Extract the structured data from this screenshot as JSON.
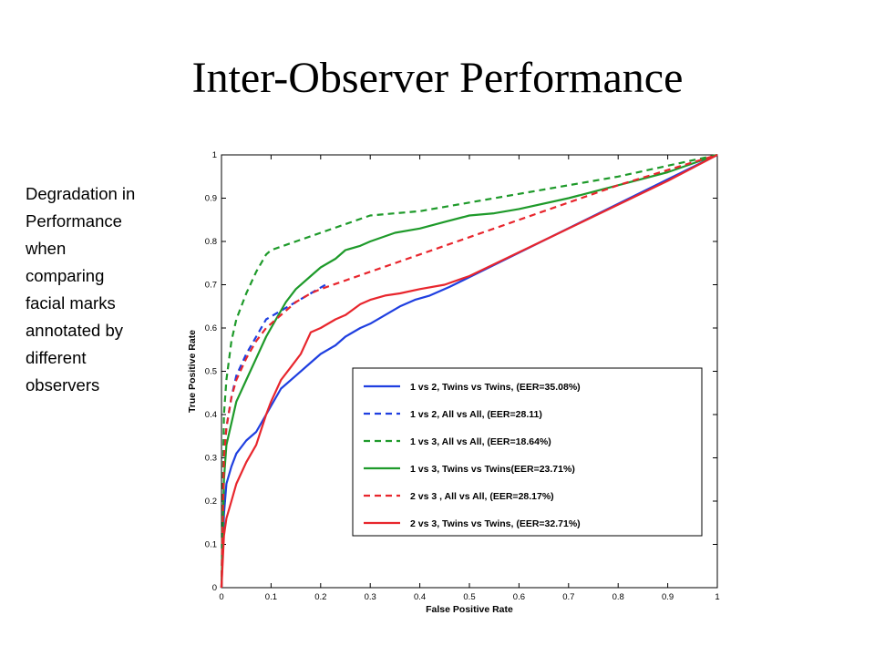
{
  "slide": {
    "title": "Inter-Observer Performance",
    "note_lines": [
      "Degradation in",
      "Performance",
      "when",
      "comparing",
      "facial marks",
      "annotated by",
      "different",
      "observers"
    ]
  },
  "chart_data": {
    "type": "line",
    "title": "",
    "xlabel": "False Positive Rate",
    "ylabel": "True Positive Rate",
    "xlim": [
      0,
      1
    ],
    "ylim": [
      0,
      1
    ],
    "xticks": [
      "0",
      "0.1",
      "0.2",
      "0.3",
      "0.4",
      "0.5",
      "0.6",
      "0.7",
      "0.8",
      "0.9",
      "1"
    ],
    "yticks": [
      "0",
      "0.1",
      "0.2",
      "0.3",
      "0.4",
      "0.5",
      "0.6",
      "0.7",
      "0.8",
      "0.9",
      "1"
    ],
    "grid": false,
    "legend_position": "lower-right",
    "series": [
      {
        "name": "1 vs 2, Twins vs Twins, (EER=35.08%)",
        "color": "#1f3fe0",
        "style": "solid",
        "x": [
          0,
          0.005,
          0.01,
          0.02,
          0.03,
          0.05,
          0.07,
          0.09,
          0.1,
          0.12,
          0.15,
          0.18,
          0.2,
          0.23,
          0.25,
          0.28,
          0.3,
          0.33,
          0.36,
          0.39,
          0.42,
          0.45,
          0.46,
          1.0
        ],
        "y": [
          0,
          0.17,
          0.24,
          0.28,
          0.31,
          0.34,
          0.36,
          0.4,
          0.42,
          0.46,
          0.49,
          0.52,
          0.54,
          0.56,
          0.58,
          0.6,
          0.61,
          0.63,
          0.65,
          0.665,
          0.675,
          0.69,
          0.695,
          1.0
        ]
      },
      {
        "name": "1 vs 2, All vs All, (EER=28.11)",
        "color": "#1f3fe0",
        "style": "dashed",
        "x": [
          0,
          0.005,
          0.01,
          0.02,
          0.03,
          0.05,
          0.07,
          0.09,
          0.12,
          0.15,
          0.18,
          0.21
        ],
        "y": [
          0,
          0.3,
          0.37,
          0.44,
          0.49,
          0.54,
          0.58,
          0.62,
          0.64,
          0.66,
          0.68,
          0.7
        ]
      },
      {
        "name": "1 vs 3, All vs All, (EER=18.64%)",
        "color": "#1e9a2a",
        "style": "dashed",
        "x": [
          0,
          0.005,
          0.01,
          0.02,
          0.03,
          0.05,
          0.07,
          0.09,
          0.1,
          0.15,
          0.2,
          0.25,
          0.3,
          0.35,
          0.4,
          0.5,
          0.6,
          0.7,
          0.8,
          0.9,
          1.0
        ],
        "y": [
          0,
          0.4,
          0.48,
          0.57,
          0.62,
          0.68,
          0.73,
          0.77,
          0.78,
          0.8,
          0.82,
          0.84,
          0.86,
          0.865,
          0.87,
          0.89,
          0.91,
          0.93,
          0.95,
          0.975,
          1.0
        ]
      },
      {
        "name": "1 vs 3, Twins vs Twins(EER=23.71%)",
        "color": "#1e9a2a",
        "style": "solid",
        "x": [
          0,
          0.005,
          0.01,
          0.02,
          0.03,
          0.05,
          0.07,
          0.09,
          0.11,
          0.13,
          0.15,
          0.18,
          0.2,
          0.23,
          0.25,
          0.28,
          0.3,
          0.35,
          0.4,
          0.45,
          0.5,
          0.55,
          0.6,
          0.7,
          0.8,
          0.9,
          1.0
        ],
        "y": [
          0,
          0.25,
          0.33,
          0.38,
          0.43,
          0.48,
          0.53,
          0.58,
          0.62,
          0.66,
          0.69,
          0.72,
          0.74,
          0.76,
          0.78,
          0.79,
          0.8,
          0.82,
          0.83,
          0.845,
          0.86,
          0.865,
          0.875,
          0.9,
          0.93,
          0.96,
          1.0
        ]
      },
      {
        "name": "2 vs 3 , All vs All, (EER=28.17%)",
        "color": "#e8262d",
        "style": "dashed",
        "x": [
          0,
          0.005,
          0.01,
          0.02,
          0.03,
          0.05,
          0.07,
          0.09,
          0.11,
          0.13,
          0.15,
          0.18,
          0.2,
          0.25,
          0.3,
          0.35,
          0.4,
          0.5,
          0.6,
          0.7,
          0.8,
          0.9,
          1.0
        ],
        "y": [
          0,
          0.3,
          0.37,
          0.44,
          0.48,
          0.53,
          0.57,
          0.6,
          0.62,
          0.64,
          0.66,
          0.68,
          0.69,
          0.71,
          0.73,
          0.75,
          0.77,
          0.81,
          0.85,
          0.89,
          0.93,
          0.965,
          1.0
        ]
      },
      {
        "name": "2 vs 3, Twins vs Twins, (EER=32.71%)",
        "color": "#e8262d",
        "style": "solid",
        "x": [
          0,
          0.005,
          0.01,
          0.02,
          0.03,
          0.05,
          0.07,
          0.09,
          0.1,
          0.12,
          0.14,
          0.16,
          0.18,
          0.2,
          0.23,
          0.25,
          0.28,
          0.3,
          0.33,
          0.36,
          0.4,
          0.45,
          0.5,
          0.6,
          0.7,
          0.8,
          0.9,
          1.0
        ],
        "y": [
          0,
          0.12,
          0.16,
          0.2,
          0.24,
          0.29,
          0.33,
          0.4,
          0.43,
          0.48,
          0.51,
          0.54,
          0.59,
          0.6,
          0.62,
          0.63,
          0.655,
          0.665,
          0.675,
          0.68,
          0.69,
          0.7,
          0.72,
          0.775,
          0.83,
          0.885,
          0.94,
          1.0
        ]
      }
    ]
  }
}
